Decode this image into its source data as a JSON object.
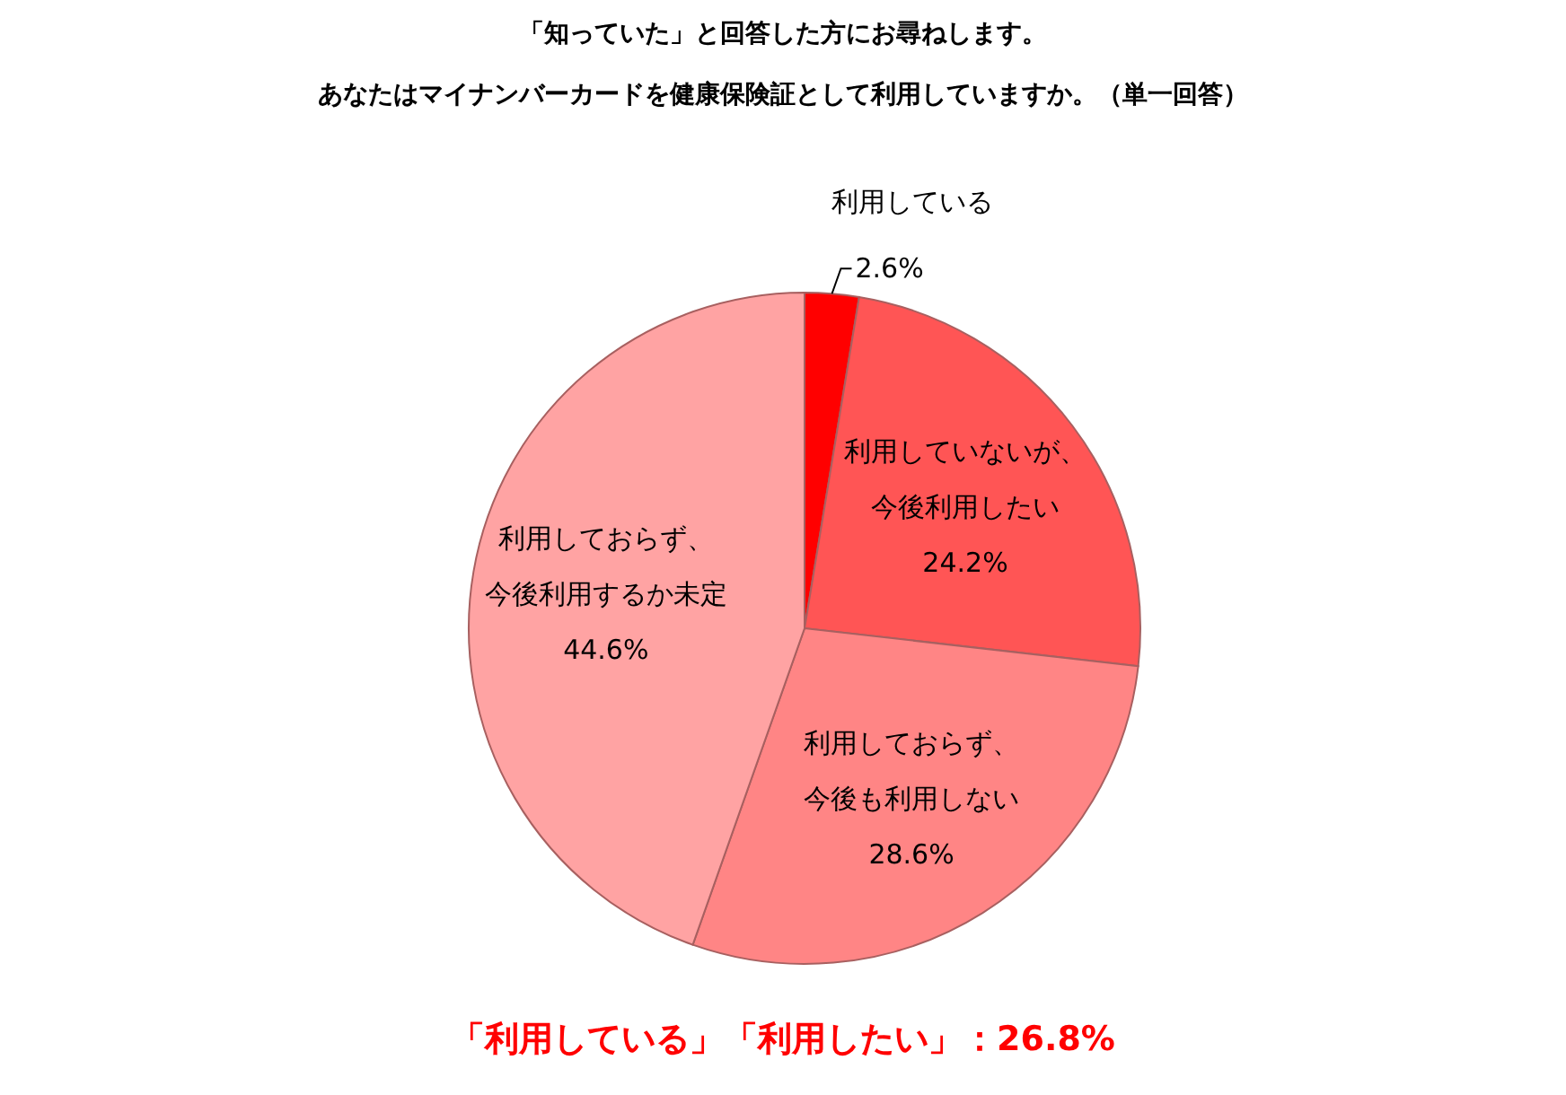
{
  "chart_data": {
    "type": "pie",
    "title": "「知っていた」と回答した方にお尋ねします。",
    "subtitle": "あなたはマイナンバーカードを健康保険証として利用していますか。（単一回答）",
    "categories": [
      "利用している",
      "利用していないが、今後利用したい",
      "利用しておらず、今後も利用しない",
      "利用しておらず、今後利用するか未定"
    ],
    "values": [
      2.6,
      24.2,
      28.6,
      44.6
    ],
    "colors": [
      "#ff0000",
      "#ff5555",
      "#ff8585",
      "#ffa3a3"
    ],
    "value_labels": [
      "2.6%",
      "24.2%",
      "28.6%",
      "44.6%"
    ],
    "annotations": [
      "「利用している」「利用したい」：26.8%"
    ]
  }
}
